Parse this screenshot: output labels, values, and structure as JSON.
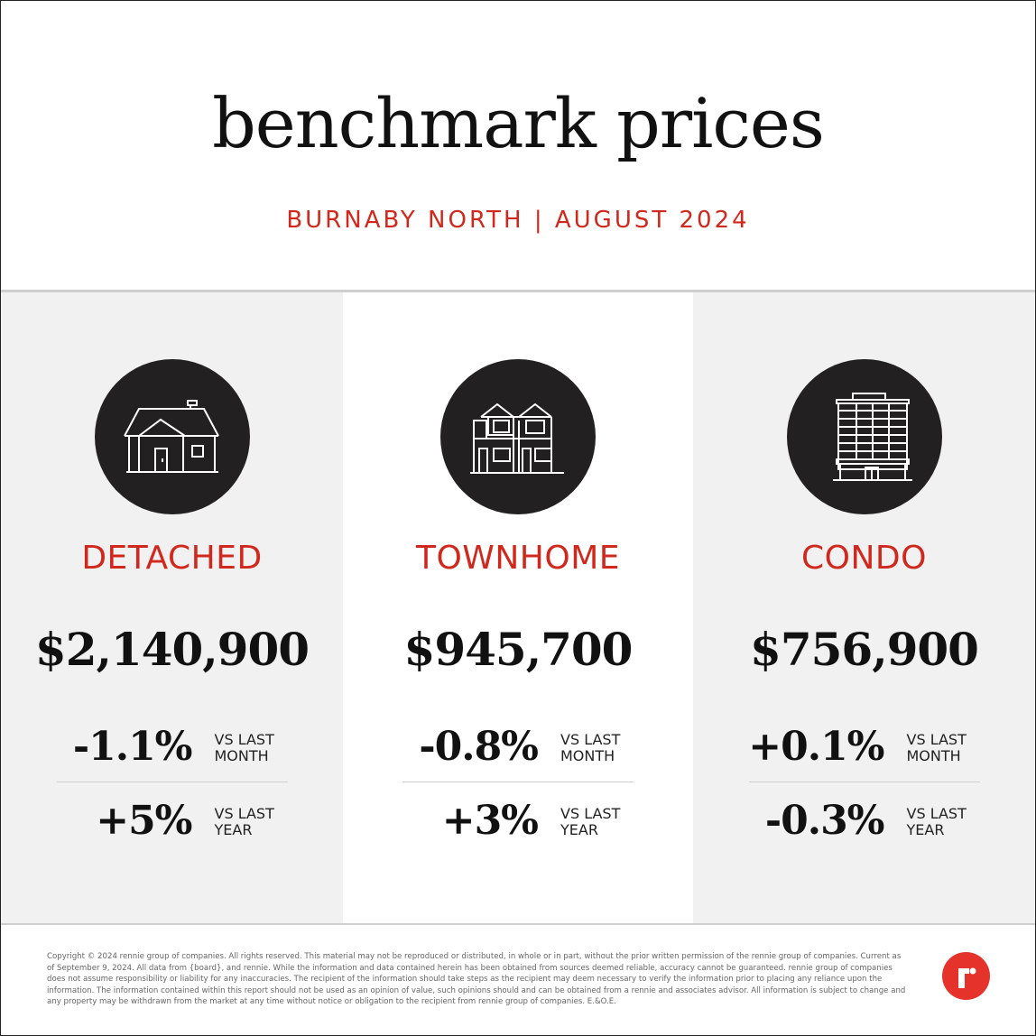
{
  "header": {
    "title": "benchmark prices",
    "subtitle": "BURNABY NORTH | AUGUST 2024"
  },
  "columns": [
    {
      "icon": "house-icon",
      "type": "DETACHED",
      "price": "$2,140,900",
      "month_change": "-1.1%",
      "month_label_1": "VS LAST",
      "month_label_2": "MONTH",
      "year_change": "+5%",
      "year_label_1": "VS LAST",
      "year_label_2": "YEAR"
    },
    {
      "icon": "townhome-icon",
      "type": "TOWNHOME",
      "price": "$945,700",
      "month_change": "-0.8%",
      "month_label_1": "VS LAST",
      "month_label_2": "MONTH",
      "year_change": "+3%",
      "year_label_1": "VS LAST",
      "year_label_2": "YEAR"
    },
    {
      "icon": "condo-building-icon",
      "type": "CONDO",
      "price": "$756,900",
      "month_change": "+0.1%",
      "month_label_1": "VS LAST",
      "month_label_2": "MONTH",
      "year_change": "-0.3%",
      "year_label_1": "VS LAST",
      "year_label_2": "YEAR"
    }
  ],
  "footer": {
    "disclaimer": "Copyright © 2024 rennie group of companies. All rights reserved. This material may not be reproduced or distributed, in whole or in part, without the prior written permission of the rennie group of companies. Current as of September 9, 2024. All data from {board}, and rennie. While the information and data contained herein has been obtained from sources deemed reliable, accuracy cannot be guaranteed. rennie group of companies does not assume responsibility or liability for any inaccuracies. The recipient of the information should take steps as the recipient may deem necessary to verify the information prior to placing any reliance upon the information. The information contained within this report should not be used as an opinion of value, such opinions should and can be obtained from a rennie and associates advisor. All information is subject to change and any property may be withdrawn from the market at any time without notice or obligation to the recipient from rennie group of companies. E.&O.E.",
    "logo_icon": "rennie-logo-icon"
  },
  "colors": {
    "accent": "#d0281d",
    "icon_circle": "#222020",
    "panel_gray": "#f1f1f1",
    "logo": "#e5322a"
  }
}
